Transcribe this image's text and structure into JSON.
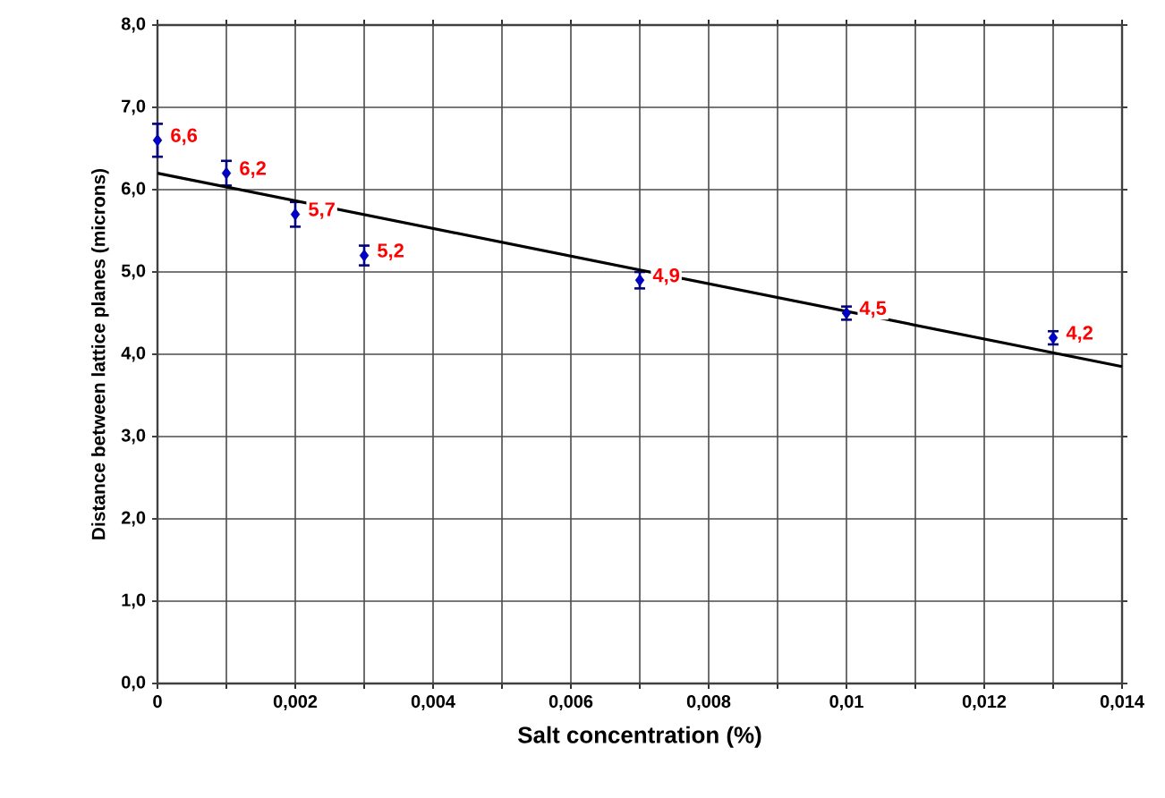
{
  "chart_data": {
    "type": "scatter",
    "xlabel": "Salt concentration (%)",
    "ylabel": "Distance between lattice planes (microns)",
    "xlim": [
      0,
      0.014
    ],
    "ylim": [
      0,
      8
    ],
    "xticks": [
      {
        "value": 0,
        "label": "0"
      },
      {
        "value": 0.001,
        "label": null
      },
      {
        "value": 0.002,
        "label": "0,002"
      },
      {
        "value": 0.003,
        "label": null
      },
      {
        "value": 0.004,
        "label": "0,004"
      },
      {
        "value": 0.005,
        "label": null
      },
      {
        "value": 0.006,
        "label": "0,006"
      },
      {
        "value": 0.007,
        "label": null
      },
      {
        "value": 0.008,
        "label": "0,008"
      },
      {
        "value": 0.009,
        "label": null
      },
      {
        "value": 0.01,
        "label": "0,01"
      },
      {
        "value": 0.011,
        "label": null
      },
      {
        "value": 0.012,
        "label": "0,012"
      },
      {
        "value": 0.013,
        "label": null
      },
      {
        "value": 0.014,
        "label": "0,014"
      }
    ],
    "yticks": [
      {
        "value": 0,
        "label": "0,0"
      },
      {
        "value": 1,
        "label": "1,0"
      },
      {
        "value": 2,
        "label": "2,0"
      },
      {
        "value": 3,
        "label": "3,0"
      },
      {
        "value": 4,
        "label": "4,0"
      },
      {
        "value": 5,
        "label": "5,0"
      },
      {
        "value": 6,
        "label": "6,0"
      },
      {
        "value": 7,
        "label": "7,0"
      },
      {
        "value": 8,
        "label": "8,0"
      }
    ],
    "grid": true,
    "series": [
      {
        "color": "#00007f",
        "marker": "diamond",
        "x": [
          0,
          0.001,
          0.002,
          0.003,
          0.007,
          0.01,
          0.013
        ],
        "values": [
          6.6,
          6.2,
          5.7,
          5.2,
          4.9,
          4.5,
          4.2
        ],
        "errors": [
          0.2,
          0.15,
          0.15,
          0.12,
          0.1,
          0.08,
          0.08
        ],
        "value_labels": [
          "6,6",
          "6,2",
          "5,7",
          "5,2",
          "4,9",
          "4,5",
          "4,2"
        ]
      },
      {
        "type": "line",
        "color": "#000000",
        "marker": "none",
        "x": [
          0,
          0.014
        ],
        "values": [
          6.2,
          3.85
        ]
      }
    ]
  }
}
